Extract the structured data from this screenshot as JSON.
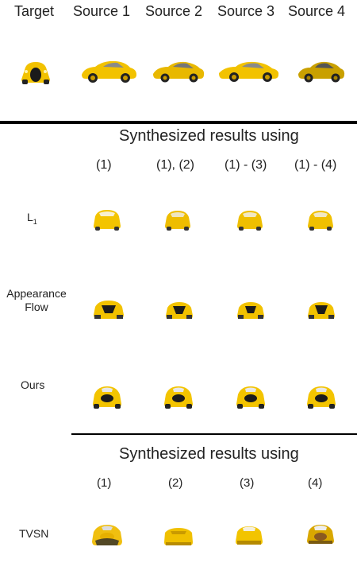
{
  "header": {
    "target": "Target",
    "source_1": "Source 1",
    "source_2": "Source 2",
    "source_3": "Source 3",
    "source_4": "Source 4"
  },
  "section_1": {
    "title": "Synthesized results using",
    "columns": [
      "(1)",
      "(1), (2)",
      "(1) - (3)",
      "(1) - (4)"
    ],
    "rows": {
      "l1": "L",
      "l1_sub": "1",
      "appearance_flow": "Appearance\nFlow",
      "ours": "Ours"
    }
  },
  "section_2": {
    "title": "Synthesized results using",
    "columns": [
      "(1)",
      "(2)",
      "(3)",
      "(4)"
    ],
    "row": "TVSN"
  },
  "colors": {
    "car_yellow": "#f2c200",
    "car_dark": "#1b1b1b",
    "rule": "#000000"
  }
}
